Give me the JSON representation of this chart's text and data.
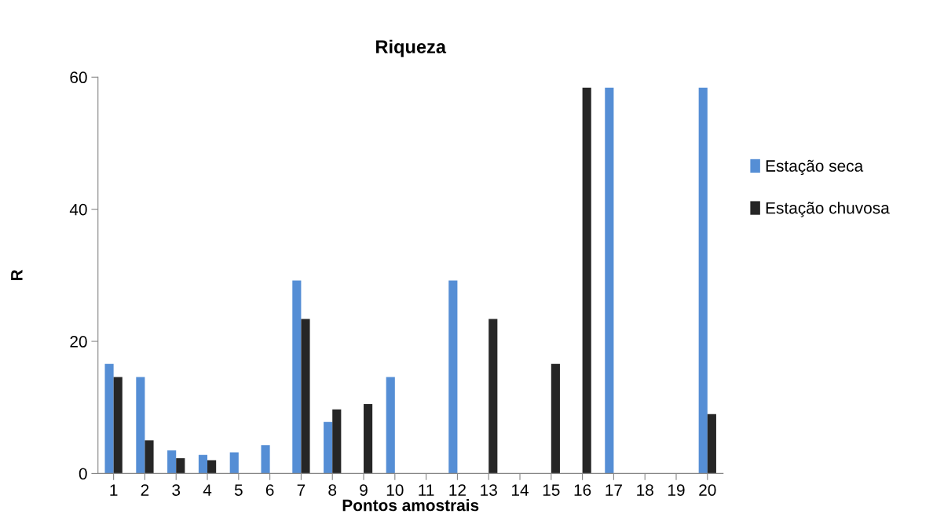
{
  "chart_data": {
    "type": "bar",
    "title": "Riqueza",
    "xlabel": "Pontos amostrais",
    "ylabel": "R",
    "categories": [
      "1",
      "2",
      "3",
      "4",
      "5",
      "6",
      "7",
      "8",
      "9",
      "10",
      "11",
      "12",
      "13",
      "14",
      "15",
      "16",
      "17",
      "18",
      "19",
      "20"
    ],
    "series": [
      {
        "name": "Estação seca",
        "color": "#558ed5",
        "values": [
          16.6,
          14.6,
          3.5,
          2.8,
          3.2,
          4.3,
          29.2,
          7.8,
          0,
          14.6,
          0,
          29.2,
          0,
          0,
          0,
          0,
          58.4,
          0,
          0,
          58.4
        ]
      },
      {
        "name": "Estação chuvosa",
        "color": "#262626",
        "values": [
          14.6,
          5.0,
          2.3,
          2.0,
          0,
          0,
          23.4,
          9.7,
          10.5,
          0,
          0,
          0,
          23.4,
          0,
          16.6,
          58.4,
          0,
          0,
          0,
          9.0
        ]
      }
    ],
    "ylim": [
      0,
      60
    ],
    "yticks": [
      0,
      20,
      40,
      60
    ],
    "grid": false,
    "legend": "right"
  }
}
